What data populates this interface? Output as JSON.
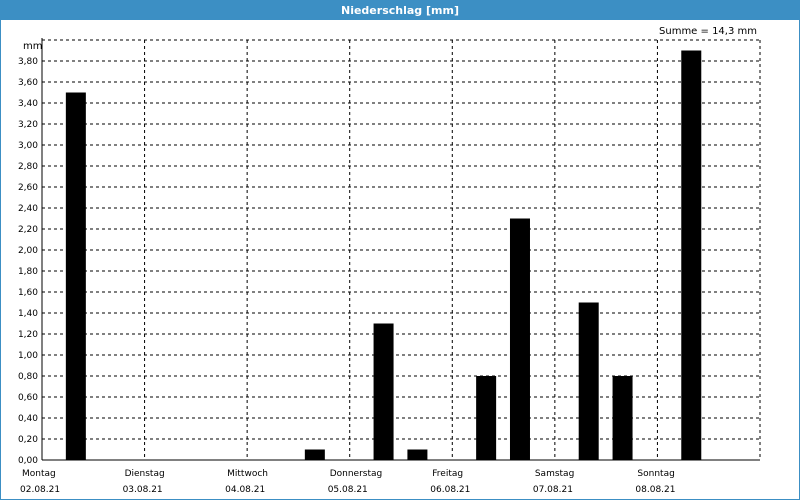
{
  "window": {
    "title": "Niederschlag [mm]"
  },
  "summary": {
    "text": "Summe = 14,3 mm"
  },
  "chart_data": {
    "type": "bar",
    "title": "Niederschlag [mm]",
    "ylabel": "mm",
    "xlabel": "",
    "ylim": [
      0,
      4.0
    ],
    "yticks": [
      0.0,
      0.2,
      0.4,
      0.6,
      0.8,
      1.0,
      1.2,
      1.4,
      1.6,
      1.8,
      2.0,
      2.2,
      2.4,
      2.6,
      2.8,
      3.0,
      3.2,
      3.4,
      3.6,
      3.8
    ],
    "ytick_labels": [
      "0,00",
      "0,20",
      "0,40",
      "0,60",
      "0,80",
      "1,00",
      "1,20",
      "1,40",
      "1,60",
      "1,80",
      "2,00",
      "2,20",
      "2,40",
      "2,60",
      "2,80",
      "3,00",
      "3,20",
      "3,40",
      "3,60",
      "3,80"
    ],
    "day_labels": [
      {
        "day": "Montag",
        "date": "02.08.21"
      },
      {
        "day": "Dienstag",
        "date": "03.08.21"
      },
      {
        "day": "Mittwoch",
        "date": "04.08.21"
      },
      {
        "day": "Donnerstag",
        "date": "05.08.21"
      },
      {
        "day": "Freitag",
        "date": "06.08.21"
      },
      {
        "day": "Samstag",
        "date": "07.08.21"
      },
      {
        "day": "Sonntag",
        "date": "08.08.21"
      }
    ],
    "x_range_days": [
      0,
      7
    ],
    "bars": [
      {
        "x_days": 0.33,
        "value": 3.5
      },
      {
        "x_days": 2.66,
        "value": 0.1
      },
      {
        "x_days": 3.33,
        "value": 1.3
      },
      {
        "x_days": 3.66,
        "value": 0.1
      },
      {
        "x_days": 4.33,
        "value": 0.8
      },
      {
        "x_days": 4.66,
        "value": 2.3
      },
      {
        "x_days": 5.33,
        "value": 1.5
      },
      {
        "x_days": 5.66,
        "value": 0.8
      },
      {
        "x_days": 6.33,
        "value": 3.9
      }
    ],
    "grid": true,
    "bar_color": "#000000",
    "grid_color": "#000000",
    "accent_color": "#3c8fc4"
  }
}
